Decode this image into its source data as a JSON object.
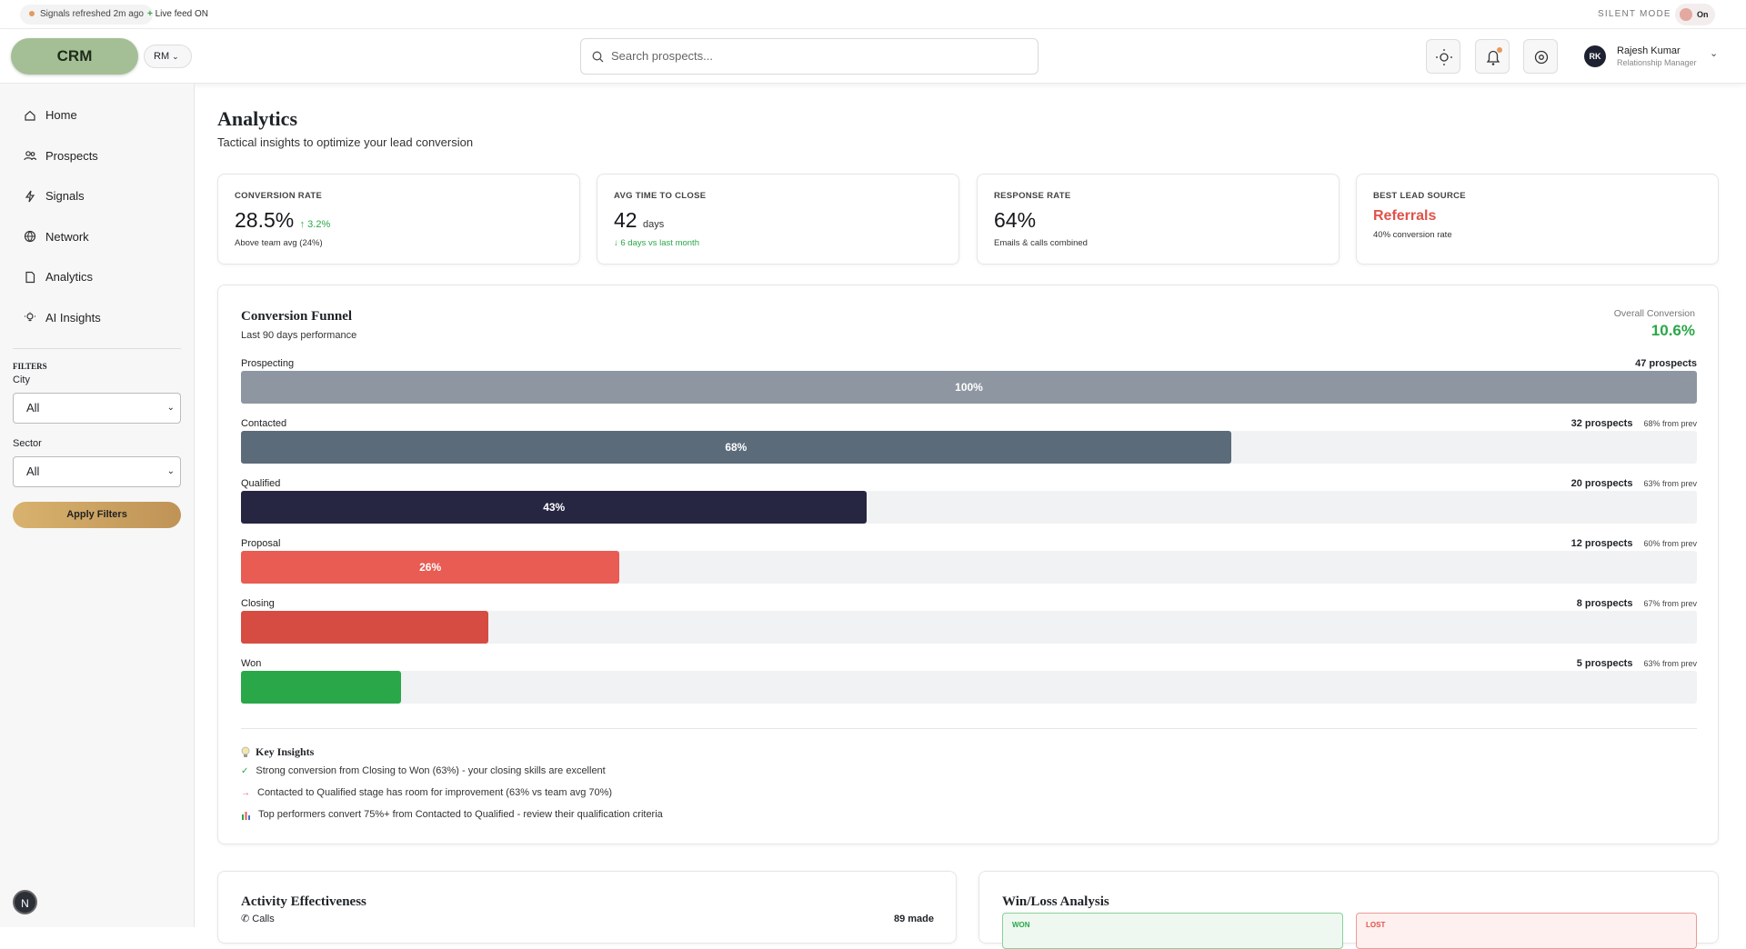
{
  "top_bar": {
    "status": "Signals refreshed 2m ago",
    "live": "Live feed ON",
    "silent_mode": "SILENT MODE",
    "toggle": "On"
  },
  "header": {
    "logo": "CRM",
    "role_switch": "RM",
    "search_placeholder": "Search prospects...",
    "user": {
      "initials": "RK",
      "name": "Rajesh Kumar",
      "role": "Relationship Manager"
    }
  },
  "sidebar": {
    "nav": [
      "Home",
      "Prospects",
      "Signals",
      "Network",
      "Analytics",
      "AI Insights"
    ],
    "filters": {
      "title": "FILTERS",
      "city_label": "City",
      "city_value": "All",
      "sector_label": "Sector",
      "sector_value": "All",
      "apply": "Apply Filters"
    },
    "badge": "N"
  },
  "page": {
    "title": "Analytics",
    "subtitle": "Tactical insights to optimize your lead conversion"
  },
  "kpis": [
    {
      "label": "CONVERSION RATE",
      "value": "28.5%",
      "delta": "↑ 3.2%",
      "note": "Above team avg (24%)"
    },
    {
      "label": "AVG TIME TO CLOSE",
      "value": "42",
      "unit": "days",
      "note": "↓ 6 days vs last month"
    },
    {
      "label": "RESPONSE RATE",
      "value": "64%",
      "note": "Emails & calls combined"
    },
    {
      "label": "BEST LEAD SOURCE",
      "value": "Referrals",
      "note": "40% conversion rate"
    }
  ],
  "funnel": {
    "title": "Conversion Funnel",
    "subtitle": "Last 90 days performance",
    "overall_label": "Overall Conversion",
    "overall_value": "10.6%",
    "stages": [
      {
        "name": "Prospecting",
        "count": "47 prospects",
        "share": 100,
        "bar_label": "100%",
        "color": "#8e97a1"
      },
      {
        "name": "Contacted",
        "count": "32 prospects",
        "from_prev": "68% from prev",
        "share": 68,
        "bar_label": "68%",
        "color": "#5c6b7a"
      },
      {
        "name": "Qualified",
        "count": "20 prospects",
        "from_prev": "63% from prev",
        "share": 43,
        "bar_label": "43%",
        "color": "#262542"
      },
      {
        "name": "Proposal",
        "count": "12 prospects",
        "from_prev": "60% from prev",
        "share": 26,
        "bar_label": "26%",
        "color": "#e85c53"
      },
      {
        "name": "Closing",
        "count": "8 prospects",
        "from_prev": "67% from prev",
        "share": 17,
        "color": "#d64c43"
      },
      {
        "name": "Won",
        "count": "5 prospects",
        "from_prev": "63% from prev",
        "share": 11,
        "color": "#2aa748"
      }
    ],
    "insights_title": "Key Insights",
    "insights": [
      "Strong conversion from Closing to Won (63%) - your closing skills are excellent",
      "Contacted to Qualified stage has room for improvement (63% vs team avg 70%)",
      "Top performers convert 75%+ from Contacted to Qualified - review their qualification criteria"
    ]
  },
  "activity": {
    "title": "Activity Effectiveness",
    "rows": [
      {
        "name": "Calls",
        "value": "89 made"
      }
    ]
  },
  "win_loss": {
    "title": "Win/Loss Analysis",
    "won": "WON",
    "lost": "LOST"
  }
}
